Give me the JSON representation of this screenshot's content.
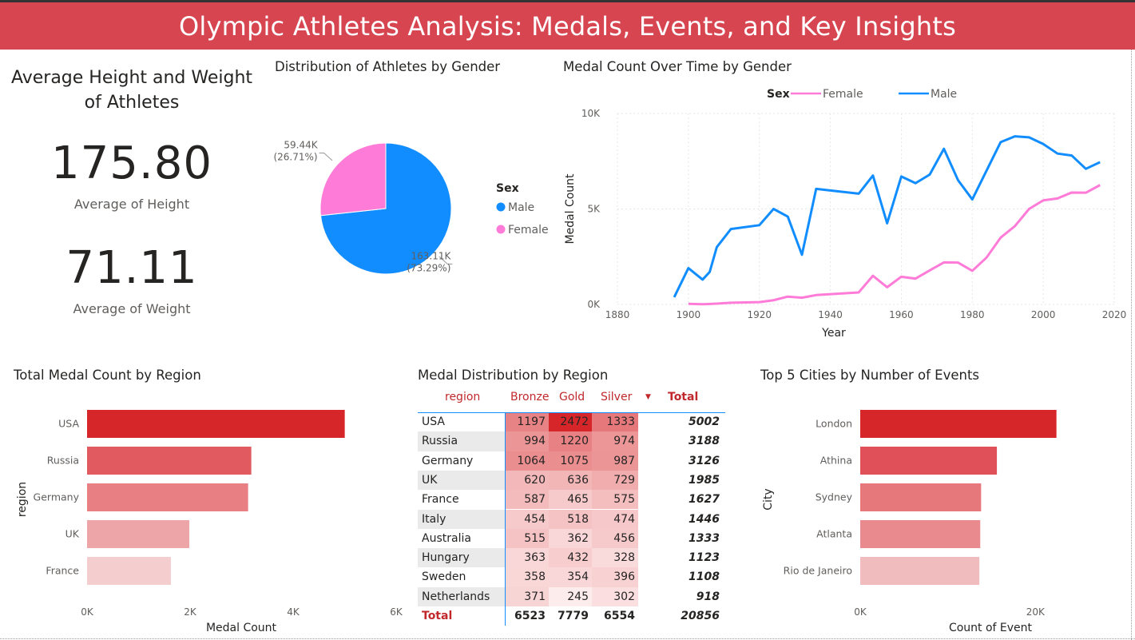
{
  "header": {
    "title": "Olympic Athletes Analysis: Medals, Events, and Key Insights"
  },
  "kpi": {
    "title": "Average Height and Weight of Athletes",
    "height_value": "175.80",
    "height_label": "Average of Height",
    "weight_value": "71.11",
    "weight_label": "Average of Weight"
  },
  "colors": {
    "banner": "#d64550",
    "male": "#118dff",
    "female": "#ff7bd8",
    "bar_top": "#d6262a",
    "table_title": "#c0282c"
  },
  "chart_data": [
    {
      "id": "gender_pie",
      "type": "pie",
      "title": "Distribution of Athletes by Gender",
      "legend_title": "Sex",
      "legend_position": "right",
      "slices": [
        {
          "name": "Male",
          "value": 163110,
          "label": "163.11K",
          "pct": "(73.29%)",
          "color": "#118dff"
        },
        {
          "name": "Female",
          "value": 59440,
          "label": "59.44K",
          "pct": "(26.71%)",
          "color": "#ff7bd8"
        }
      ]
    },
    {
      "id": "medals_over_time",
      "type": "line",
      "title": "Medal Count Over Time by Gender",
      "legend_title": "Sex",
      "legend_position": "top-left",
      "xlabel": "Year",
      "ylabel": "Medal Count",
      "xlim": [
        1880,
        2020
      ],
      "ylim": [
        0,
        10000
      ],
      "xticks": [
        "1880",
        "1900",
        "1920",
        "1940",
        "1960",
        "1980",
        "2000",
        "2020"
      ],
      "yticks": [
        "0K",
        "5K",
        "10K"
      ],
      "grid": true,
      "series": [
        {
          "name": "Female",
          "color": "#ff7bd8",
          "points": [
            [
              1900,
              30
            ],
            [
              1904,
              10
            ],
            [
              1908,
              40
            ],
            [
              1912,
              90
            ],
            [
              1920,
              120
            ],
            [
              1924,
              220
            ],
            [
              1928,
              410
            ],
            [
              1932,
              350
            ],
            [
              1936,
              490
            ],
            [
              1948,
              630
            ],
            [
              1952,
              1500
            ],
            [
              1956,
              900
            ],
            [
              1960,
              1450
            ],
            [
              1964,
              1350
            ],
            [
              1968,
              1780
            ],
            [
              1972,
              2200
            ],
            [
              1976,
              2190
            ],
            [
              1980,
              1760
            ],
            [
              1984,
              2450
            ],
            [
              1988,
              3500
            ],
            [
              1992,
              4100
            ],
            [
              1996,
              5000
            ],
            [
              2000,
              5450
            ],
            [
              2004,
              5550
            ],
            [
              2008,
              5860
            ],
            [
              2012,
              5850
            ],
            [
              2016,
              6250
            ]
          ]
        },
        {
          "name": "Male",
          "color": "#118dff",
          "points": [
            [
              1896,
              380
            ],
            [
              1900,
              1900
            ],
            [
              1904,
              1300
            ],
            [
              1906,
              1700
            ],
            [
              1908,
              3000
            ],
            [
              1912,
              3950
            ],
            [
              1920,
              4150
            ],
            [
              1924,
              5000
            ],
            [
              1928,
              4600
            ],
            [
              1932,
              2600
            ],
            [
              1936,
              6050
            ],
            [
              1948,
              5800
            ],
            [
              1952,
              6750
            ],
            [
              1956,
              4250
            ],
            [
              1960,
              6700
            ],
            [
              1964,
              6350
            ],
            [
              1968,
              6800
            ],
            [
              1972,
              8150
            ],
            [
              1976,
              6500
            ],
            [
              1980,
              5500
            ],
            [
              1984,
              7000
            ],
            [
              1988,
              8500
            ],
            [
              1992,
              8800
            ],
            [
              1996,
              8750
            ],
            [
              2000,
              8400
            ],
            [
              2004,
              7900
            ],
            [
              2008,
              7800
            ],
            [
              2012,
              7100
            ],
            [
              2016,
              7450
            ]
          ]
        }
      ]
    },
    {
      "id": "region_bar",
      "type": "bar",
      "orientation": "horizontal",
      "title": "Total Medal Count by Region",
      "xlabel": "Medal Count",
      "ylabel": "region",
      "xlim": [
        0,
        6000
      ],
      "xticks": [
        "0K",
        "2K",
        "4K",
        "6K"
      ],
      "categories": [
        "USA",
        "Russia",
        "Germany",
        "UK",
        "France"
      ],
      "values": [
        5002,
        3188,
        3126,
        1985,
        1627
      ],
      "bar_colors": [
        "#d6262a",
        "#e05a5f",
        "#e77f83",
        "#eda5a8",
        "#f4cdcf"
      ]
    },
    {
      "id": "medal_table",
      "type": "table",
      "title": "Medal Distribution by Region",
      "columns": [
        "region",
        "Bronze",
        "Gold",
        "Silver",
        "Total"
      ],
      "rows": [
        {
          "region": "USA",
          "bronze": 1197,
          "gold": 2472,
          "silver": 1333,
          "total": 5002
        },
        {
          "region": "Russia",
          "bronze": 994,
          "gold": 1220,
          "silver": 974,
          "total": 3188
        },
        {
          "region": "Germany",
          "bronze": 1064,
          "gold": 1075,
          "silver": 987,
          "total": 3126
        },
        {
          "region": "UK",
          "bronze": 620,
          "gold": 636,
          "silver": 729,
          "total": 1985
        },
        {
          "region": "France",
          "bronze": 587,
          "gold": 465,
          "silver": 575,
          "total": 1627
        },
        {
          "region": "Italy",
          "bronze": 454,
          "gold": 518,
          "silver": 474,
          "total": 1446
        },
        {
          "region": "Australia",
          "bronze": 515,
          "gold": 362,
          "silver": 456,
          "total": 1333
        },
        {
          "region": "Hungary",
          "bronze": 363,
          "gold": 432,
          "silver": 328,
          "total": 1123
        },
        {
          "region": "Sweden",
          "bronze": 358,
          "gold": 354,
          "silver": 396,
          "total": 1108
        },
        {
          "region": "Netherlands",
          "bronze": 371,
          "gold": 245,
          "silver": 302,
          "total": 918
        }
      ],
      "totals": {
        "label": "Total",
        "bronze": 6523,
        "gold": 7779,
        "silver": 6554,
        "total": 20856
      }
    },
    {
      "id": "cities_bar",
      "type": "bar",
      "orientation": "horizontal",
      "title": "Top 5 Cities by Number of Events",
      "xlabel": "Count of Event",
      "ylabel": "City",
      "xlim": [
        0,
        30000
      ],
      "xticks": [
        "0K",
        "20K"
      ],
      "categories": [
        "London",
        "Athina",
        "Sydney",
        "Atlanta",
        "Rio de Janeiro"
      ],
      "values": [
        22400,
        15600,
        13800,
        13700,
        13600
      ],
      "bar_colors": [
        "#d6262a",
        "#e05058",
        "#e6787c",
        "#e98b8e",
        "#f0bcbe"
      ]
    }
  ]
}
